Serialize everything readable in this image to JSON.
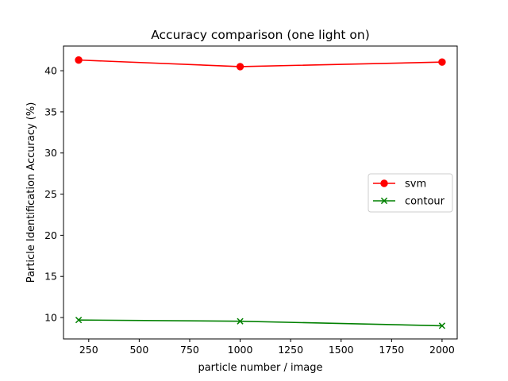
{
  "chart_data": {
    "type": "line",
    "title": "Accuracy comparison (one light on)",
    "xlabel": "particle number / image",
    "ylabel": "Particle Identification Accuracy (%)",
    "x": [
      200,
      1000,
      2000
    ],
    "xlim": [
      125,
      2075
    ],
    "ylim": [
      7.4,
      43.0
    ],
    "xticks": [
      250,
      500,
      750,
      1000,
      1250,
      1500,
      1750,
      2000
    ],
    "yticks": [
      10,
      15,
      20,
      25,
      30,
      35,
      40
    ],
    "grid": false,
    "legend_position": "center-right",
    "series": [
      {
        "name": "svm",
        "color": "#ff0000",
        "marker": "circle",
        "values": [
          41.3,
          40.5,
          41.05
        ]
      },
      {
        "name": "contour",
        "color": "#008000",
        "marker": "x",
        "values": [
          9.7,
          9.55,
          9.0
        ]
      }
    ]
  }
}
